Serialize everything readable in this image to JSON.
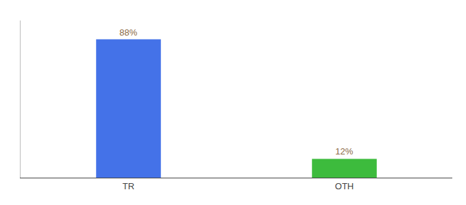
{
  "chart_data": {
    "type": "bar",
    "categories": [
      "TR",
      "OTH"
    ],
    "values": [
      88,
      12
    ],
    "value_labels": [
      "88%",
      "12%"
    ],
    "data_labels": true,
    "colors": [
      "#4472e8",
      "#3dbb3d"
    ],
    "ylim": [
      0,
      100
    ],
    "tick_labels": "x",
    "grid": false
  }
}
